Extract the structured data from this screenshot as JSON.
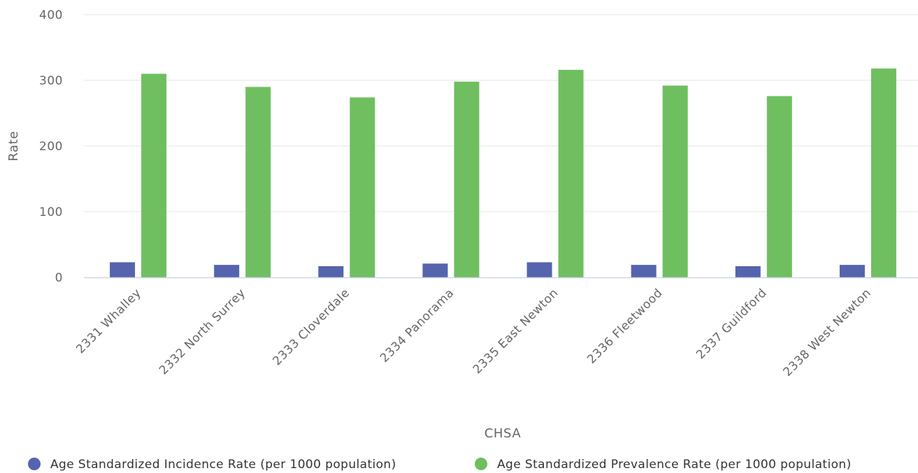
{
  "chart_data": {
    "type": "bar",
    "title": "",
    "xlabel": "CHSA",
    "ylabel": "Rate",
    "ylim": [
      0,
      400
    ],
    "yticks": [
      0,
      100,
      200,
      300,
      400
    ],
    "grid": true,
    "legend_position": "bottom",
    "categories": [
      "2331 Whalley",
      "2332 North Surrey",
      "2333 Cloverdale",
      "2334 Panorama",
      "2335 East Newton",
      "2336 Fleetwood",
      "2337 Guildford",
      "2338 West Newton"
    ],
    "series": [
      {
        "name": "Age Standardized Incidence Rate (per 1000 population)",
        "color": "#5564ad",
        "values": [
          23,
          19,
          17,
          21,
          23,
          19,
          17,
          19
        ]
      },
      {
        "name": "Age Standardized Prevalence Rate (per 1000 population)",
        "color": "#6fbf60",
        "values": [
          310,
          290,
          274,
          298,
          316,
          292,
          276,
          318
        ]
      }
    ]
  }
}
